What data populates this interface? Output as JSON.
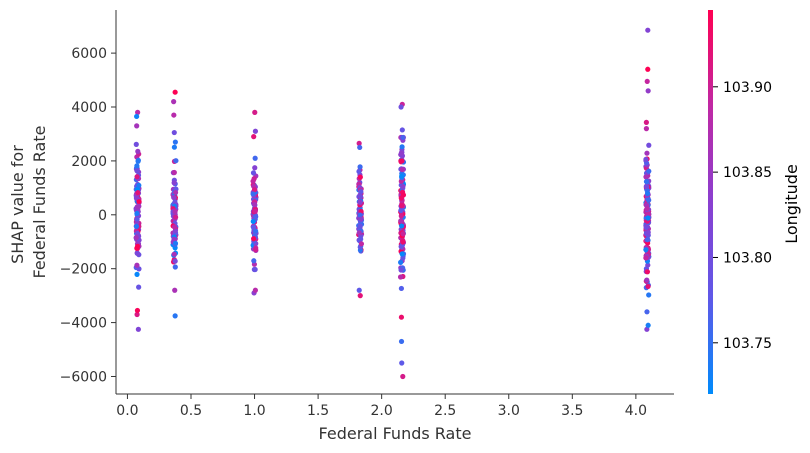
{
  "chart_data": {
    "type": "scatter",
    "xlabel": "Federal Funds Rate",
    "ylabel_lines": [
      "SHAP value for",
      "Federal Funds Rate"
    ],
    "xlim": [
      -0.09,
      4.3
    ],
    "ylim": [
      -6650,
      7600
    ],
    "x_ticks": [
      0.0,
      0.5,
      1.0,
      1.5,
      2.0,
      2.5,
      3.0,
      3.5,
      4.0
    ],
    "x_tick_labels": [
      "0.0",
      "0.5",
      "1.0",
      "1.5",
      "2.0",
      "2.5",
      "3.0",
      "3.5",
      "4.0"
    ],
    "y_ticks": [
      -6000,
      -4000,
      -2000,
      0,
      2000,
      4000,
      6000
    ],
    "y_tick_labels": [
      "−6000",
      "−4000",
      "−2000",
      "0",
      "2000",
      "4000",
      "6000"
    ],
    "grid": false,
    "colorbar": {
      "label": "Longitude",
      "min": 103.72,
      "max": 103.945,
      "ticks": [
        103.75,
        103.8,
        103.85,
        103.9
      ],
      "tick_labels": [
        "103.75",
        "103.80",
        "103.85",
        "103.90"
      ],
      "colors": [
        "#008bfb",
        "#5f58e8",
        "#8a3fd0",
        "#c028a4",
        "#ff0052"
      ]
    },
    "clusters": [
      {
        "x": 0.08,
        "count": 110,
        "min": -4250,
        "max": 3800,
        "outliers_y": [
          -4250,
          -3700,
          3800,
          3650,
          -3550,
          3300
        ]
      },
      {
        "x": 0.37,
        "count": 95,
        "min": -3750,
        "max": 4550,
        "outliers_y": [
          -3750,
          4550,
          4200,
          3700,
          -2800,
          2700
        ]
      },
      {
        "x": 1.0,
        "count": 100,
        "min": -2900,
        "max": 3800,
        "outliers_y": [
          3800,
          3100,
          -2900,
          -2800,
          2900
        ]
      },
      {
        "x": 1.83,
        "count": 80,
        "min": -3000,
        "max": 2650,
        "outliers_y": [
          -3000,
          -2800,
          2650,
          2500
        ]
      },
      {
        "x": 2.16,
        "count": 130,
        "min": -6000,
        "max": 4100,
        "outliers_y": [
          -6000,
          -5500,
          -4700,
          4100,
          4000,
          -3800,
          3150
        ]
      },
      {
        "x": 4.09,
        "count": 150,
        "min": -4250,
        "max": 6850,
        "outliers_y": [
          6850,
          5400,
          4950,
          4600,
          -4250,
          -4100,
          -3600
        ]
      }
    ]
  }
}
